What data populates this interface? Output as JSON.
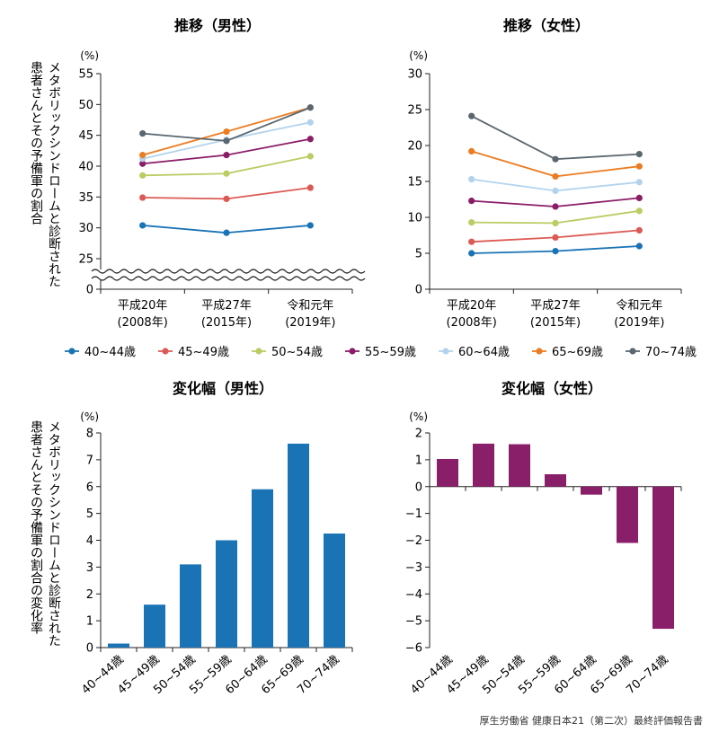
{
  "legend": [
    {
      "name": "40~44歳",
      "color": "#1a73b5"
    },
    {
      "name": "45~49歳",
      "color": "#dc5a55"
    },
    {
      "name": "50~54歳",
      "color": "#b9cd63"
    },
    {
      "name": "55~59歳",
      "color": "#8b1d67"
    },
    {
      "name": "60~64歳",
      "color": "#b3d3ed"
    },
    {
      "name": "65~69歳",
      "color": "#ec7c22"
    },
    {
      "name": "70~74歳",
      "color": "#5a6770"
    }
  ],
  "ylabel_line": "メタボリックシンドロームと診断された患者さんとその予備軍の割合",
  "ylabel_bar": "メタボリックシンドロームと診断された患者さんとその予備軍の割合の変化率",
  "source": "厚生労働省 健康日本21（第二次）最終評価報告書",
  "chart_data": [
    {
      "type": "line",
      "title": "推移（男性）",
      "unit": "(%)",
      "x": [
        "平成20年\n(2008年)",
        "平成27年\n(2015年)",
        "令和元年\n(2019年)"
      ],
      "ylim": [
        0,
        55
      ],
      "yticks": [
        0,
        25,
        30,
        35,
        40,
        45,
        50,
        55
      ],
      "axis_break": [
        0,
        25
      ],
      "series": [
        {
          "name": "40~44歳",
          "values": [
            30.4,
            29.2,
            30.4
          ]
        },
        {
          "name": "45~49歳",
          "values": [
            34.9,
            34.7,
            36.5
          ]
        },
        {
          "name": "50~54歳",
          "values": [
            38.5,
            38.8,
            41.6
          ]
        },
        {
          "name": "55~59歳",
          "values": [
            40.4,
            41.8,
            44.4
          ]
        },
        {
          "name": "60~64歳",
          "values": [
            41.2,
            44.3,
            47.1
          ]
        },
        {
          "name": "65~69歳",
          "values": [
            41.8,
            45.6,
            49.5
          ]
        },
        {
          "name": "70~74歳",
          "values": [
            45.3,
            44.1,
            49.5
          ]
        }
      ]
    },
    {
      "type": "line",
      "title": "推移（女性）",
      "unit": "(%)",
      "x": [
        "平成20年\n(2008年)",
        "平成27年\n(2015年)",
        "令和元年\n(2019年)"
      ],
      "ylim": [
        0,
        30
      ],
      "yticks": [
        0,
        5,
        10,
        15,
        20,
        25,
        30
      ],
      "series": [
        {
          "name": "40~44歳",
          "values": [
            5.0,
            5.3,
            6.0
          ]
        },
        {
          "name": "45~49歳",
          "values": [
            6.6,
            7.2,
            8.2
          ]
        },
        {
          "name": "50~54歳",
          "values": [
            9.3,
            9.2,
            10.9
          ]
        },
        {
          "name": "55~59歳",
          "values": [
            12.3,
            11.5,
            12.7
          ]
        },
        {
          "name": "60~64歳",
          "values": [
            15.3,
            13.7,
            14.9
          ]
        },
        {
          "name": "65~69歳",
          "values": [
            19.2,
            15.7,
            17.1
          ]
        },
        {
          "name": "70~74歳",
          "values": [
            24.1,
            18.1,
            18.8
          ]
        }
      ]
    },
    {
      "type": "bar",
      "title": "変化幅（男性）",
      "unit": "(%)",
      "categories": [
        "40~44歳",
        "45~49歳",
        "50~54歳",
        "55~59歳",
        "60~64歳",
        "65~69歳",
        "70~74歳"
      ],
      "values": [
        0.15,
        1.6,
        3.1,
        4.0,
        5.9,
        7.6,
        4.25
      ],
      "ylim": [
        0,
        8
      ],
      "yticks": [
        0,
        1,
        2,
        3,
        4,
        5,
        6,
        7,
        8
      ],
      "color": "#1a73b5"
    },
    {
      "type": "bar",
      "title": "変化幅（女性）",
      "unit": "(%)",
      "categories": [
        "40~44歳",
        "45~49歳",
        "50~54歳",
        "55~59歳",
        "60~64歳",
        "65~69歳",
        "70~74歳"
      ],
      "values": [
        1.03,
        1.6,
        1.58,
        0.46,
        -0.3,
        -2.1,
        -5.3
      ],
      "ylim": [
        -6,
        2
      ],
      "yticks": [
        -6,
        -5,
        -4,
        -3,
        -2,
        -1,
        0,
        1,
        2
      ],
      "color": "#8a1f69"
    }
  ]
}
